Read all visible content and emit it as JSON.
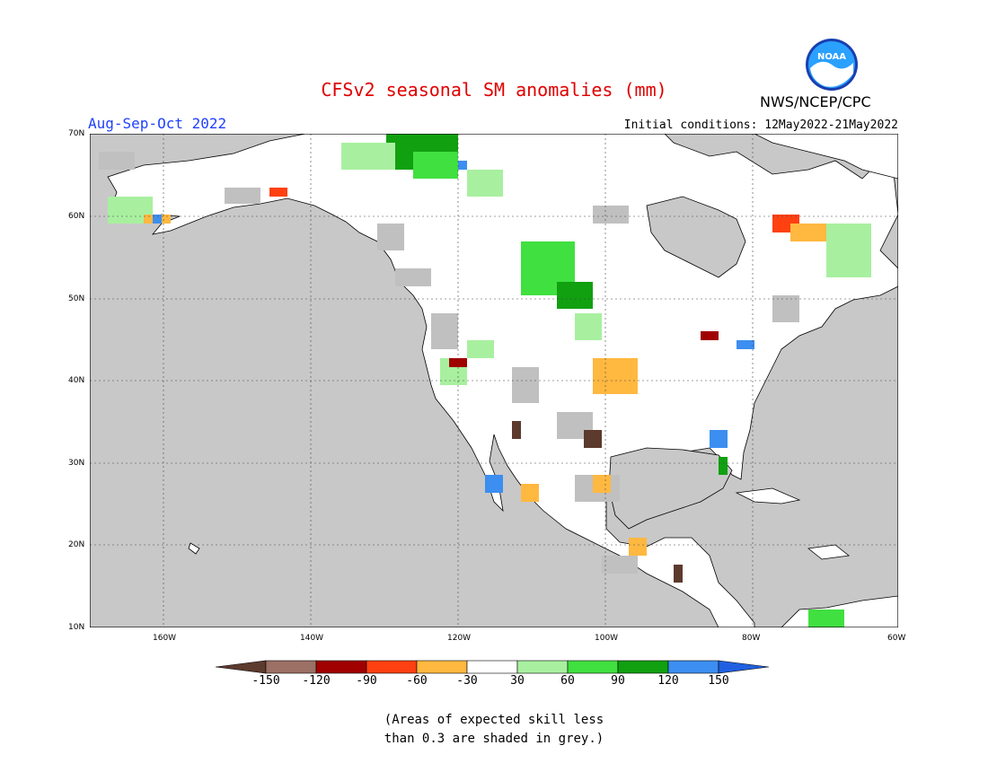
{
  "title": "CFSv2 seasonal SM anomalies (mm)",
  "season": "Aug-Sep-Oct 2022",
  "initial_conditions": "Initial conditions: 12May2022-21May2022",
  "agency": "NWS/NCEP/CPC",
  "logo_text": "NOAA",
  "lat_labels": [
    "70N",
    "60N",
    "50N",
    "40N",
    "30N",
    "20N",
    "10N"
  ],
  "lon_labels": [
    "160W",
    "140W",
    "120W",
    "100W",
    "80W",
    "60W"
  ],
  "colorbar": {
    "ticks": [
      "-150",
      "-120",
      "-90",
      "-60",
      "-30",
      "30",
      "60",
      "90",
      "120",
      "150"
    ],
    "colors": [
      "#5c3a2e",
      "#9c7064",
      "#a00000",
      "#ff4010",
      "#ffb840",
      "#ffffff",
      "#a8f0a0",
      "#40e040",
      "#10a010",
      "#3c8ef0",
      "#2060e0"
    ]
  },
  "note_line1": "(Areas of expected skill less",
  "note_line2": "than 0.3 are shaded in grey.)",
  "colors": {
    "ocean": "#c8c8c8",
    "land": "#ffffff",
    "grey_skill": "#c0c0c0",
    "title": "#e00000",
    "season": "#2040ff"
  }
}
